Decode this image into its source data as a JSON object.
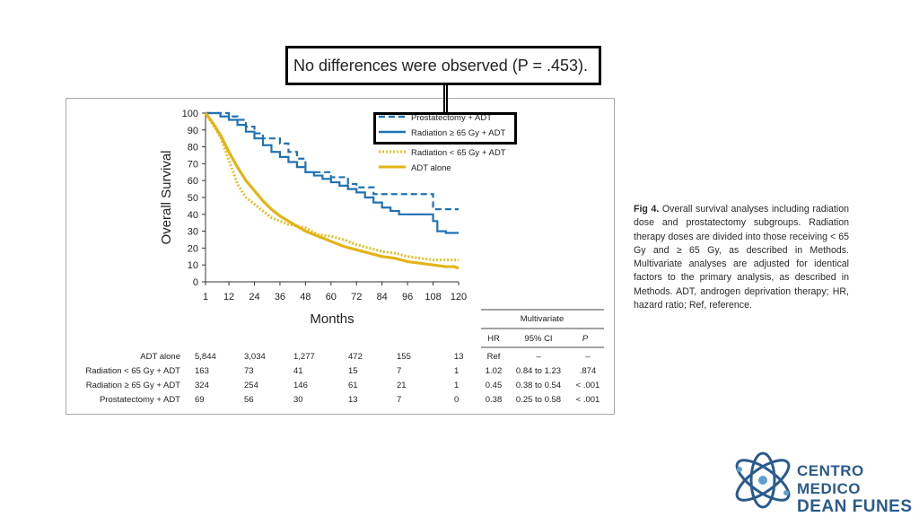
{
  "callout": {
    "text": "No differences were observed (P = .453)."
  },
  "caption": {
    "fig_label": "Fig 4.",
    "text": "Overall survival analyses including radiation dose and prostatectomy subgroups. Radiation therapy doses are divided into those receiving < 65 Gy and ≥ 65 Gy, as described in Methods. Multivariate analyses are adjusted for identical factors to the primary analysis, as described in Methods. ADT, androgen deprivation therapy; HR, hazard ratio; Ref, reference."
  },
  "logo": {
    "line1": "CENTRO MEDICO",
    "line2": "DEAN FUNES",
    "icon": "atom-icon"
  },
  "chart_data": {
    "type": "line",
    "xlabel": "Months",
    "ylabel": "Overall Survival",
    "x_ticks": [
      1,
      12,
      24,
      36,
      48,
      60,
      72,
      84,
      96,
      108,
      120
    ],
    "y_ticks": [
      0,
      10,
      20,
      30,
      40,
      50,
      60,
      70,
      80,
      90,
      100
    ],
    "xlim": [
      1,
      120
    ],
    "ylim": [
      0,
      100
    ],
    "grid": false,
    "legend_position": "top-right",
    "series": [
      {
        "name": "Prostatectomy + ADT",
        "color": "#1f73b4",
        "style": "dashed",
        "x": [
          1,
          8,
          12,
          16,
          20,
          24,
          28,
          32,
          36,
          40,
          44,
          48,
          52,
          56,
          60,
          64,
          68,
          72,
          76,
          80,
          84,
          88,
          96,
          104,
          108,
          112,
          116,
          120
        ],
        "y": [
          100,
          100,
          98,
          96,
          92,
          88,
          85,
          85,
          82,
          77,
          73,
          65,
          65,
          65,
          62,
          62,
          58,
          56,
          56,
          52,
          52,
          52,
          52,
          52,
          43,
          43,
          43,
          43
        ]
      },
      {
        "name": "Radiation ≥ 65 Gy + ADT",
        "color": "#1f73b4",
        "style": "solid",
        "x": [
          1,
          8,
          12,
          16,
          20,
          24,
          28,
          32,
          36,
          40,
          44,
          48,
          52,
          56,
          60,
          64,
          68,
          72,
          76,
          80,
          84,
          88,
          92,
          96,
          100,
          104,
          108,
          110,
          114,
          120
        ],
        "y": [
          100,
          98,
          96,
          93,
          89,
          85,
          81,
          77,
          74,
          71,
          68,
          65,
          63,
          61,
          59,
          57,
          55,
          53,
          50,
          47,
          44,
          42,
          40,
          40,
          40,
          40,
          36,
          30,
          29,
          29
        ]
      },
      {
        "name": "Radiation < 65 Gy + ADT",
        "color": "#e6c027",
        "style": "dotted",
        "x": [
          1,
          4,
          8,
          12,
          16,
          20,
          24,
          28,
          32,
          36,
          40,
          44,
          48,
          54,
          60,
          66,
          72,
          78,
          84,
          90,
          96,
          102,
          108,
          114,
          120
        ],
        "y": [
          100,
          94,
          86,
          72,
          58,
          50,
          46,
          42,
          38,
          36,
          34,
          33,
          32,
          28,
          27,
          25,
          22,
          20,
          18,
          17,
          15,
          14,
          13,
          13,
          13
        ]
      },
      {
        "name": "ADT alone",
        "color": "#e3b416",
        "style": "solid",
        "x": [
          1,
          4,
          8,
          12,
          16,
          20,
          24,
          28,
          32,
          36,
          40,
          44,
          48,
          54,
          60,
          66,
          72,
          78,
          84,
          90,
          96,
          102,
          108,
          114,
          118,
          120
        ],
        "y": [
          100,
          95,
          87,
          77,
          68,
          60,
          54,
          48,
          43,
          39,
          36,
          33,
          30,
          27,
          24,
          21,
          19,
          17,
          15,
          14,
          12,
          11,
          10,
          9,
          9,
          8
        ]
      }
    ],
    "risk_table": {
      "rows": [
        {
          "label": "ADT alone",
          "values": [
            "5,844",
            "3,034",
            "1,277",
            "472",
            "155",
            "13"
          ]
        },
        {
          "label": "Radiation < 65 Gy + ADT",
          "values": [
            "163",
            "73",
            "41",
            "15",
            "7",
            "1"
          ]
        },
        {
          "label": "Radiation ≥ 65 Gy + ADT",
          "values": [
            "324",
            "254",
            "146",
            "61",
            "21",
            "1"
          ]
        },
        {
          "label": "Prostatectomy + ADT",
          "values": [
            "69",
            "56",
            "30",
            "13",
            "7",
            "0"
          ]
        }
      ]
    },
    "multivariate": {
      "title": "Multivariate",
      "headers": [
        "HR",
        "95% CI",
        "P"
      ],
      "rows": [
        [
          "Ref",
          "–",
          "–"
        ],
        [
          "1.02",
          "0.84 to 1.23",
          ".874"
        ],
        [
          "0.45",
          "0.38 to 0.54",
          "< .001"
        ],
        [
          "0.38",
          "0.25 to 0.58",
          "< .001"
        ]
      ]
    }
  }
}
